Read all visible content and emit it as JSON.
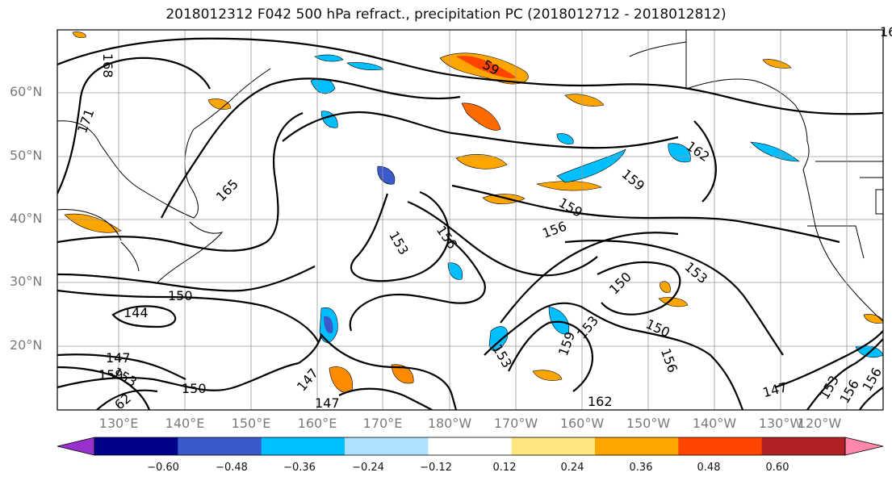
{
  "title": "2018012312 F042 500 hPa refract., precipitation PC (2018012712 - 2018012812)",
  "lat_labels": [
    "60°N",
    "50°N",
    "40°N",
    "30°N",
    "20°N"
  ],
  "lon_labels": [
    "130°E",
    "140°E",
    "150°E",
    "160°E",
    "170°E",
    "180°W",
    "170°W",
    "160°W",
    "150°W",
    "140°W",
    "130°W",
    "120°W"
  ],
  "colorbar": {
    "colors": [
      "#9932cc",
      "#00008b",
      "#3a5acb",
      "#00bfff",
      "#b0e2ff",
      "#ffffff",
      "#ffe680",
      "#ffa500",
      "#ff4500",
      "#b22222",
      "#ff88aa"
    ],
    "tick_labels": [
      "−0.60",
      "−0.48",
      "−0.36",
      "−0.24",
      "−0.12",
      "0.12",
      "0.24",
      "0.36",
      "0.48",
      "0.60"
    ]
  },
  "contour_labels": [
    "168",
    "171",
    "165",
    "153",
    "156",
    "150",
    "144",
    "147",
    "153",
    "159",
    "162",
    "162",
    "159",
    "159",
    "156",
    "153",
    "150",
    "150",
    "153",
    "156",
    "159",
    "153",
    "147",
    "150",
    "147",
    "162",
    "147",
    "153",
    "156",
    "156",
    "62",
    "59"
  ]
}
